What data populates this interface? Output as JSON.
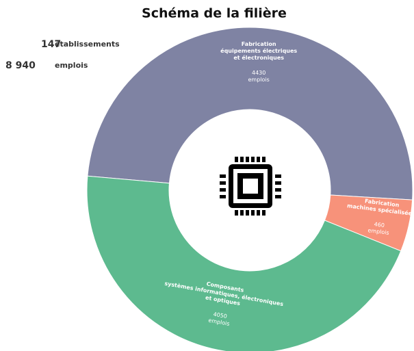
{
  "chart_data": {
    "type": "donut",
    "title": "Schéma de la filière",
    "stats": [
      {
        "number": "147",
        "label": "établissements"
      },
      {
        "number": "8 940",
        "label": "emplois"
      }
    ],
    "labels": [
      [
        "Fabrication",
        "équipements électriques",
        "et électroniques"
      ],
      [
        "Fabrication",
        "machines spécialisées"
      ],
      [
        "Composants",
        "systèmes informatiques, électroniques",
        "et optiques"
      ]
    ],
    "values": [
      4430,
      460,
      4050
    ],
    "value_unit": "emplois",
    "colors": [
      "#7f83a3",
      "#f7927a",
      "#5dba8f"
    ],
    "start_angle": 275
  }
}
